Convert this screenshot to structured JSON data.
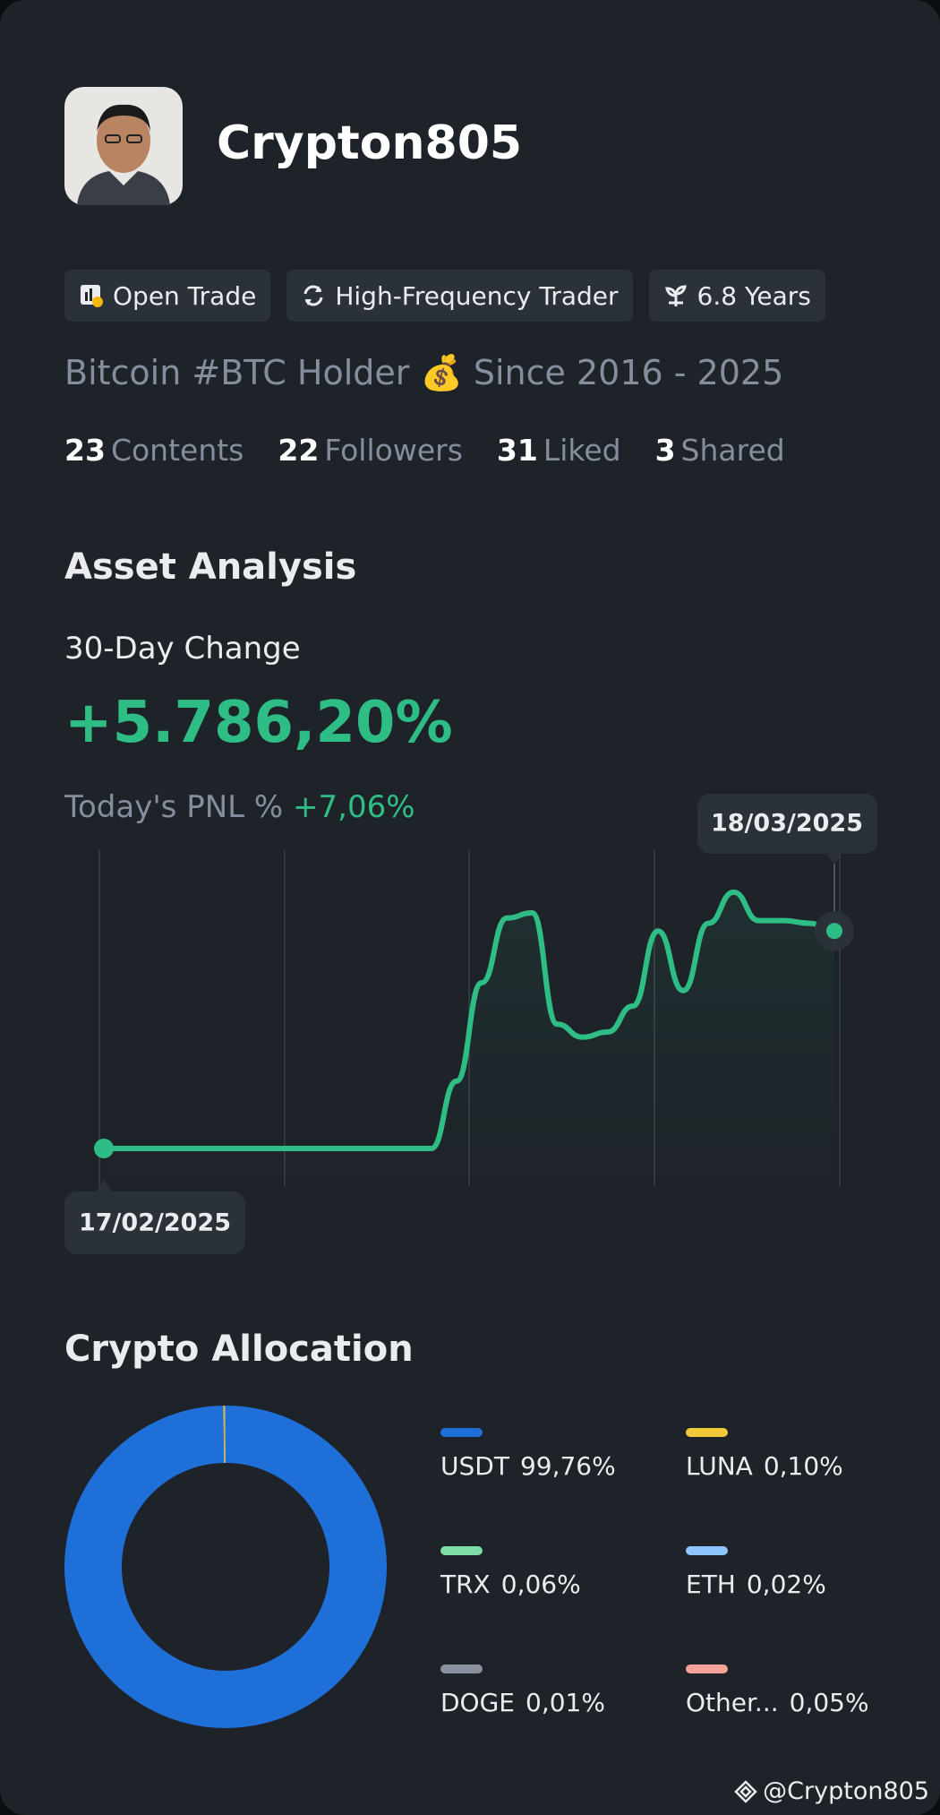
{
  "profile": {
    "name": "Crypton805",
    "tags": [
      "Open Trade",
      "High-Frequency Trader",
      "6.8 Years"
    ],
    "bio": "Bitcoin #BTC Holder 💰 Since 2016 - 2025",
    "stats": [
      {
        "value": 23,
        "label": "Contents"
      },
      {
        "value": 22,
        "label": "Followers"
      },
      {
        "value": 31,
        "label": "Liked"
      },
      {
        "value": 3,
        "label": "Shared"
      }
    ]
  },
  "asset_analysis": {
    "title": "Asset Analysis",
    "change_label": "30-Day Change",
    "change_value": "+5.786,20%",
    "pnl_label": "Today's PNL %",
    "pnl_value": "+7,06%"
  },
  "chart_data": [
    {
      "type": "line",
      "start_date": "17/02/2025",
      "end_date": "18/03/2025",
      "color": "#2ebd85",
      "ylim": [
        0,
        100
      ],
      "values": [
        0,
        0,
        0,
        0,
        0,
        0,
        0,
        0,
        0,
        0,
        0,
        0,
        0,
        0,
        26,
        64,
        89,
        91,
        48,
        43,
        45,
        55,
        84,
        61,
        87,
        99,
        88,
        88,
        87,
        84
      ]
    },
    {
      "type": "donut",
      "title": "Crypto Allocation",
      "categories": [
        "USDT",
        "LUNA",
        "TRX",
        "ETH",
        "DOGE",
        "Other..."
      ],
      "values": [
        99.76,
        0.1,
        0.06,
        0.02,
        0.01,
        0.05
      ],
      "value_labels": [
        "99,76%",
        "0,10%",
        "0,06%",
        "0,02%",
        "0,01%",
        "0,05%"
      ],
      "colors": [
        "#1f6fd8",
        "#f0c93a",
        "#7fdca6",
        "#8ec5ff",
        "#8a919e",
        "#f5a29a"
      ]
    }
  ],
  "footer": "@Crypton805"
}
